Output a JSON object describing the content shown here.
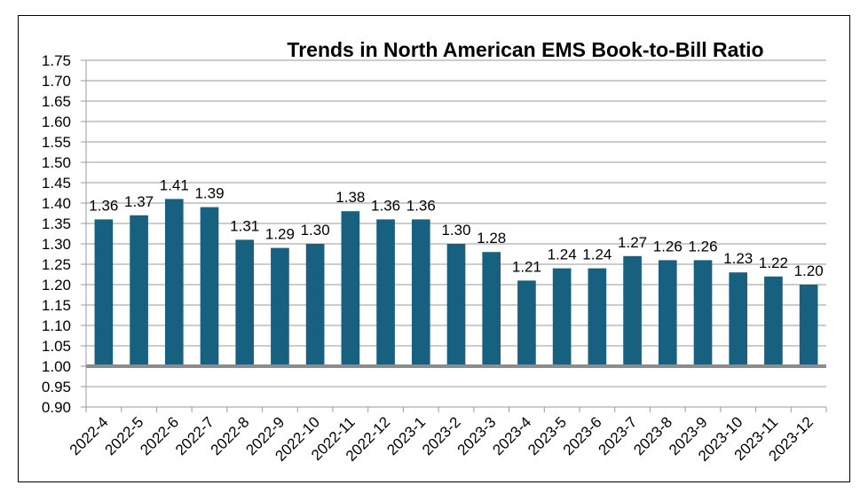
{
  "chart_data": {
    "type": "bar",
    "title": "Trends in North American EMS Book-to-Bill Ratio",
    "xlabel": "",
    "ylabel": "",
    "ylim": [
      0.9,
      1.75
    ],
    "y_tick_step": 0.05,
    "y_ticks": [
      "1.75",
      "1.70",
      "1.65",
      "1.60",
      "1.55",
      "1.50",
      "1.45",
      "1.40",
      "1.35",
      "1.30",
      "1.25",
      "1.20",
      "1.15",
      "1.10",
      "1.05",
      "1.00",
      "0.95",
      "0.90"
    ],
    "baseline": 1.0,
    "grid": true,
    "legend": "none",
    "categories": [
      "2022-4",
      "2022-5",
      "2022-6",
      "2022-7",
      "2022-8",
      "2022-9",
      "2022-10",
      "2022-11",
      "2022-12",
      "2023-1",
      "2023-2",
      "2023-3",
      "2023-4",
      "2023-5",
      "2023-6",
      "2023-7",
      "2023-8",
      "2023-9",
      "2023-10",
      "2023-11",
      "2023-12"
    ],
    "values": [
      1.36,
      1.37,
      1.41,
      1.39,
      1.31,
      1.29,
      1.3,
      1.38,
      1.36,
      1.36,
      1.3,
      1.28,
      1.21,
      1.24,
      1.24,
      1.27,
      1.26,
      1.26,
      1.23,
      1.22,
      1.2
    ],
    "value_labels": [
      "1.36",
      "1.37",
      "1.41",
      "1.39",
      "1.31",
      "1.29",
      "1.30",
      "1.38",
      "1.36",
      "1.36",
      "1.30",
      "1.28",
      "1.21",
      "1.24",
      "1.24",
      "1.27",
      "1.26",
      "1.26",
      "1.23",
      "1.22",
      "1.20"
    ],
    "colors": {
      "bar": "#17607F",
      "baseline": "#8C8C8C",
      "grid": "#9A9A9A",
      "frame": "#000000",
      "text": "#000000"
    }
  }
}
